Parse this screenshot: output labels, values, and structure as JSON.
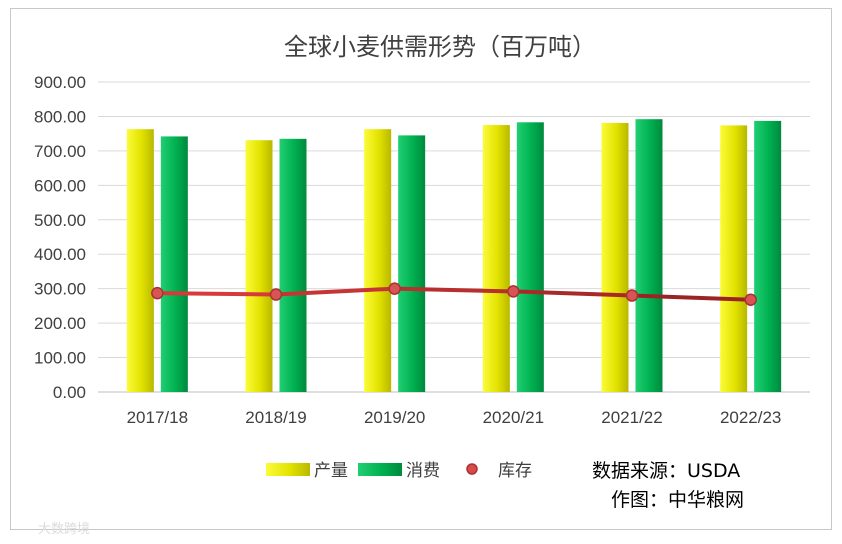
{
  "chart_data": {
    "type": "bar",
    "title": "全球小麦供需形势（百万吨）",
    "categories": [
      "2017/18",
      "2018/19",
      "2019/20",
      "2020/21",
      "2021/22",
      "2022/23"
    ],
    "ylim": [
      0,
      900
    ],
    "yticks": [
      "0.00",
      "100.00",
      "200.00",
      "300.00",
      "400.00",
      "500.00",
      "600.00",
      "700.00",
      "800.00",
      "900.00"
    ],
    "grid": true,
    "legend_position": "bottom",
    "series": [
      {
        "name": "产量",
        "type": "bar",
        "color": "#e6e600",
        "values": [
          763,
          731,
          763,
          775,
          781,
          774
        ]
      },
      {
        "name": "消费",
        "type": "bar",
        "color": "#00b050",
        "values": [
          742,
          735,
          745,
          783,
          792,
          787
        ]
      },
      {
        "name": "库存",
        "type": "line",
        "color": "#c0392b",
        "values": [
          287,
          283,
          300,
          292,
          280,
          268
        ]
      }
    ]
  },
  "notes": {
    "source": "数据来源：USDA",
    "author": "作图：中华粮网"
  },
  "watermark": "大数跨境"
}
